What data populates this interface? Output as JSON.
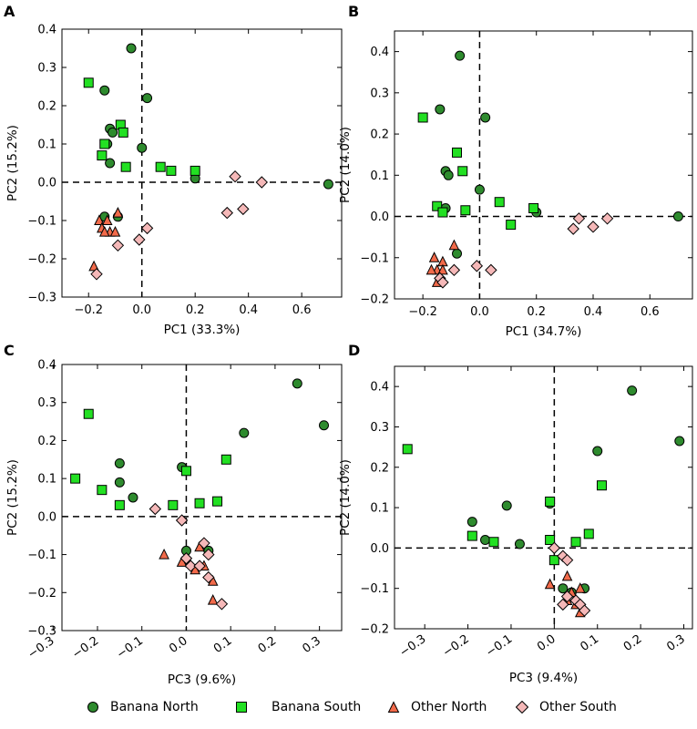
{
  "colors": {
    "banana_north": "#2e8b2e",
    "banana_south": "#22e022",
    "other_north": "#f26a4a",
    "other_south": "#f5b8b8"
  },
  "legend": {
    "items": [
      {
        "label": "Banana North",
        "key": "banana_north",
        "marker": "circle"
      },
      {
        "label": "Banana South",
        "key": "banana_south",
        "marker": "square"
      },
      {
        "label": "Other North",
        "key": "other_north",
        "marker": "triangle"
      },
      {
        "label": "Other South",
        "key": "other_south",
        "marker": "diamond"
      }
    ]
  },
  "chart_data": [
    {
      "type": "scatter",
      "panel_label": "A",
      "xlabel": "PC1 (33.3%)",
      "ylabel": "PC2 (15.2%)",
      "xlim": [
        -0.3,
        0.75
      ],
      "ylim": [
        -0.3,
        0.4
      ],
      "xticks": [
        -0.2,
        0.0,
        0.2,
        0.4,
        0.6
      ],
      "xtick_labels": [
        "−0.2",
        "0.0",
        "0.2",
        "0.4",
        "0.6"
      ],
      "yticks": [
        -0.3,
        -0.2,
        -0.1,
        0.0,
        0.1,
        0.2,
        0.3,
        0.4
      ],
      "ytick_labels": [
        "−0.3",
        "−0.2",
        "−0.1",
        "0.0",
        "0.1",
        "0.2",
        "0.3",
        "0.4"
      ],
      "series": [
        {
          "name": "Banana North",
          "points": [
            [
              -0.04,
              0.35
            ],
            [
              -0.14,
              0.24
            ],
            [
              0.02,
              0.22
            ],
            [
              -0.12,
              0.14
            ],
            [
              -0.11,
              0.13
            ],
            [
              -0.13,
              0.1
            ],
            [
              0.0,
              0.09
            ],
            [
              -0.12,
              0.05
            ],
            [
              0.2,
              0.01
            ],
            [
              0.7,
              -0.005
            ],
            [
              -0.14,
              -0.09
            ],
            [
              -0.09,
              -0.09
            ]
          ]
        },
        {
          "name": "Banana South",
          "points": [
            [
              -0.2,
              0.26
            ],
            [
              -0.08,
              0.15
            ],
            [
              -0.07,
              0.13
            ],
            [
              -0.14,
              0.1
            ],
            [
              -0.15,
              0.07
            ],
            [
              -0.06,
              0.04
            ],
            [
              0.07,
              0.04
            ],
            [
              0.11,
              0.03
            ],
            [
              0.2,
              0.03
            ]
          ]
        },
        {
          "name": "Other North",
          "points": [
            [
              -0.09,
              -0.08
            ],
            [
              -0.16,
              -0.1
            ],
            [
              -0.13,
              -0.1
            ],
            [
              -0.15,
              -0.12
            ],
            [
              -0.12,
              -0.13
            ],
            [
              -0.1,
              -0.13
            ],
            [
              -0.14,
              -0.13
            ],
            [
              -0.18,
              -0.22
            ]
          ]
        },
        {
          "name": "Other South",
          "points": [
            [
              0.35,
              0.015
            ],
            [
              0.45,
              0.0
            ],
            [
              0.02,
              -0.12
            ],
            [
              -0.01,
              -0.15
            ],
            [
              0.38,
              -0.07
            ],
            [
              0.32,
              -0.08
            ],
            [
              -0.09,
              -0.165
            ],
            [
              -0.17,
              -0.24
            ]
          ]
        }
      ]
    },
    {
      "type": "scatter",
      "panel_label": "B",
      "xlabel": "PC1 (34.7%)",
      "ylabel": "PC2 (14.0%)",
      "xlim": [
        -0.3,
        0.75
      ],
      "ylim": [
        -0.2,
        0.45
      ],
      "xticks": [
        -0.2,
        0.0,
        0.2,
        0.4,
        0.6
      ],
      "xtick_labels": [
        "−0.2",
        "0.0",
        "0.2",
        "0.4",
        "0.6"
      ],
      "yticks": [
        -0.2,
        -0.1,
        0.0,
        0.1,
        0.2,
        0.3,
        0.4
      ],
      "ytick_labels": [
        "−0.2",
        "−0.1",
        "0.0",
        "0.1",
        "0.2",
        "0.3",
        "0.4"
      ],
      "series": [
        {
          "name": "Banana North",
          "points": [
            [
              -0.07,
              0.39
            ],
            [
              -0.14,
              0.26
            ],
            [
              0.02,
              0.24
            ],
            [
              -0.12,
              0.11
            ],
            [
              -0.11,
              0.1
            ],
            [
              0.0,
              0.065
            ],
            [
              -0.12,
              0.02
            ],
            [
              0.2,
              0.01
            ],
            [
              0.7,
              0.0
            ],
            [
              -0.08,
              -0.09
            ]
          ]
        },
        {
          "name": "Banana South",
          "points": [
            [
              -0.2,
              0.24
            ],
            [
              -0.08,
              0.155
            ],
            [
              -0.06,
              0.11
            ],
            [
              -0.15,
              0.025
            ],
            [
              -0.13,
              0.01
            ],
            [
              -0.05,
              0.015
            ],
            [
              0.07,
              0.035
            ],
            [
              0.19,
              0.02
            ],
            [
              0.11,
              -0.02
            ]
          ]
        },
        {
          "name": "Other North",
          "points": [
            [
              -0.09,
              -0.07
            ],
            [
              -0.13,
              -0.11
            ],
            [
              -0.16,
              -0.1
            ],
            [
              -0.15,
              -0.13
            ],
            [
              -0.17,
              -0.13
            ],
            [
              -0.13,
              -0.13
            ],
            [
              -0.15,
              -0.16
            ]
          ]
        },
        {
          "name": "Other South",
          "points": [
            [
              0.35,
              -0.005
            ],
            [
              0.45,
              -0.005
            ],
            [
              0.4,
              -0.025
            ],
            [
              0.33,
              -0.03
            ],
            [
              -0.01,
              -0.12
            ],
            [
              0.04,
              -0.13
            ],
            [
              -0.09,
              -0.13
            ],
            [
              -0.14,
              -0.15
            ],
            [
              -0.13,
              -0.16
            ]
          ]
        }
      ]
    },
    {
      "type": "scatter",
      "panel_label": "C",
      "xlabel": "PC3 (9.6%)",
      "ylabel": "PC2 (15.2%)",
      "xlim": [
        -0.28,
        0.35
      ],
      "ylim": [
        -0.3,
        0.4
      ],
      "xticks": [
        -0.3,
        -0.2,
        -0.1,
        0.0,
        0.1,
        0.2,
        0.3
      ],
      "xtick_labels": [
        "−0.3",
        "−0.2",
        "−0.1",
        "0.0",
        "0.1",
        "0.2",
        "0.3"
      ],
      "yticks": [
        -0.3,
        -0.2,
        -0.1,
        0.0,
        0.1,
        0.2,
        0.3,
        0.4
      ],
      "ytick_labels": [
        "−0.3",
        "−0.2",
        "−0.1",
        "0.0",
        "0.1",
        "0.2",
        "0.3",
        "0.4"
      ],
      "series": [
        {
          "name": "Banana North",
          "points": [
            [
              0.25,
              0.35
            ],
            [
              0.31,
              0.24
            ],
            [
              0.13,
              0.22
            ],
            [
              -0.15,
              0.14
            ],
            [
              -0.01,
              0.13
            ],
            [
              -0.15,
              0.09
            ],
            [
              -0.12,
              0.05
            ],
            [
              0.0,
              -0.09
            ],
            [
              0.05,
              -0.09
            ]
          ]
        },
        {
          "name": "Banana South",
          "points": [
            [
              -0.22,
              0.27
            ],
            [
              -0.25,
              0.1
            ],
            [
              0.09,
              0.15
            ],
            [
              0.0,
              0.12
            ],
            [
              -0.19,
              0.07
            ],
            [
              -0.15,
              0.03
            ],
            [
              -0.03,
              0.03
            ],
            [
              0.03,
              0.035
            ],
            [
              0.07,
              0.04
            ]
          ]
        },
        {
          "name": "Other North",
          "points": [
            [
              -0.05,
              -0.1
            ],
            [
              0.03,
              -0.08
            ],
            [
              -0.01,
              -0.12
            ],
            [
              0.02,
              -0.14
            ],
            [
              0.04,
              -0.13
            ],
            [
              0.06,
              -0.17
            ],
            [
              0.06,
              -0.22
            ]
          ]
        },
        {
          "name": "Other South",
          "points": [
            [
              -0.07,
              0.02
            ],
            [
              -0.01,
              -0.01
            ],
            [
              0.04,
              -0.07
            ],
            [
              0.0,
              -0.11
            ],
            [
              0.01,
              -0.13
            ],
            [
              0.03,
              -0.13
            ],
            [
              0.05,
              -0.16
            ],
            [
              0.05,
              -0.1
            ],
            [
              0.08,
              -0.23
            ]
          ]
        }
      ]
    },
    {
      "type": "scatter",
      "panel_label": "D",
      "xlabel": "PC3 (9.4%)",
      "ylabel": "PC2 (14.0%)",
      "xlim": [
        -0.37,
        0.32
      ],
      "ylim": [
        -0.2,
        0.45
      ],
      "xticks": [
        -0.3,
        -0.2,
        -0.1,
        0.0,
        0.1,
        0.2,
        0.3
      ],
      "xtick_labels": [
        "−0.3",
        "−0.2",
        "−0.1",
        "0.0",
        "0.1",
        "0.2",
        "0.3"
      ],
      "yticks": [
        -0.2,
        -0.1,
        0.0,
        0.1,
        0.2,
        0.3,
        0.4
      ],
      "ytick_labels": [
        "−0.2",
        "−0.1",
        "0.0",
        "0.1",
        "0.2",
        "0.3",
        "0.4"
      ],
      "series": [
        {
          "name": "Banana North",
          "points": [
            [
              0.18,
              0.39
            ],
            [
              0.29,
              0.265
            ],
            [
              0.1,
              0.24
            ],
            [
              -0.19,
              0.065
            ],
            [
              -0.11,
              0.105
            ],
            [
              -0.08,
              0.01
            ],
            [
              -0.16,
              0.02
            ],
            [
              -0.01,
              0.11
            ],
            [
              0.02,
              -0.1
            ],
            [
              0.07,
              -0.1
            ],
            [
              0.04,
              -0.11
            ]
          ]
        },
        {
          "name": "Banana South",
          "points": [
            [
              -0.34,
              0.245
            ],
            [
              0.11,
              0.155
            ],
            [
              -0.01,
              0.115
            ],
            [
              -0.19,
              0.03
            ],
            [
              -0.14,
              0.015
            ],
            [
              -0.01,
              0.02
            ],
            [
              0.05,
              0.015
            ],
            [
              0.08,
              0.035
            ],
            [
              0.0,
              -0.03
            ]
          ]
        },
        {
          "name": "Other North",
          "points": [
            [
              -0.01,
              -0.09
            ],
            [
              0.03,
              -0.07
            ],
            [
              0.06,
              -0.1
            ],
            [
              0.04,
              -0.11
            ],
            [
              0.05,
              -0.14
            ],
            [
              0.06,
              -0.16
            ],
            [
              0.03,
              -0.13
            ]
          ]
        },
        {
          "name": "Other South",
          "points": [
            [
              0.0,
              0.0
            ],
            [
              0.02,
              -0.02
            ],
            [
              0.03,
              -0.03
            ],
            [
              0.03,
              -0.12
            ],
            [
              0.05,
              -0.13
            ],
            [
              0.02,
              -0.14
            ],
            [
              0.06,
              -0.14
            ],
            [
              0.07,
              -0.155
            ]
          ]
        }
      ]
    }
  ]
}
